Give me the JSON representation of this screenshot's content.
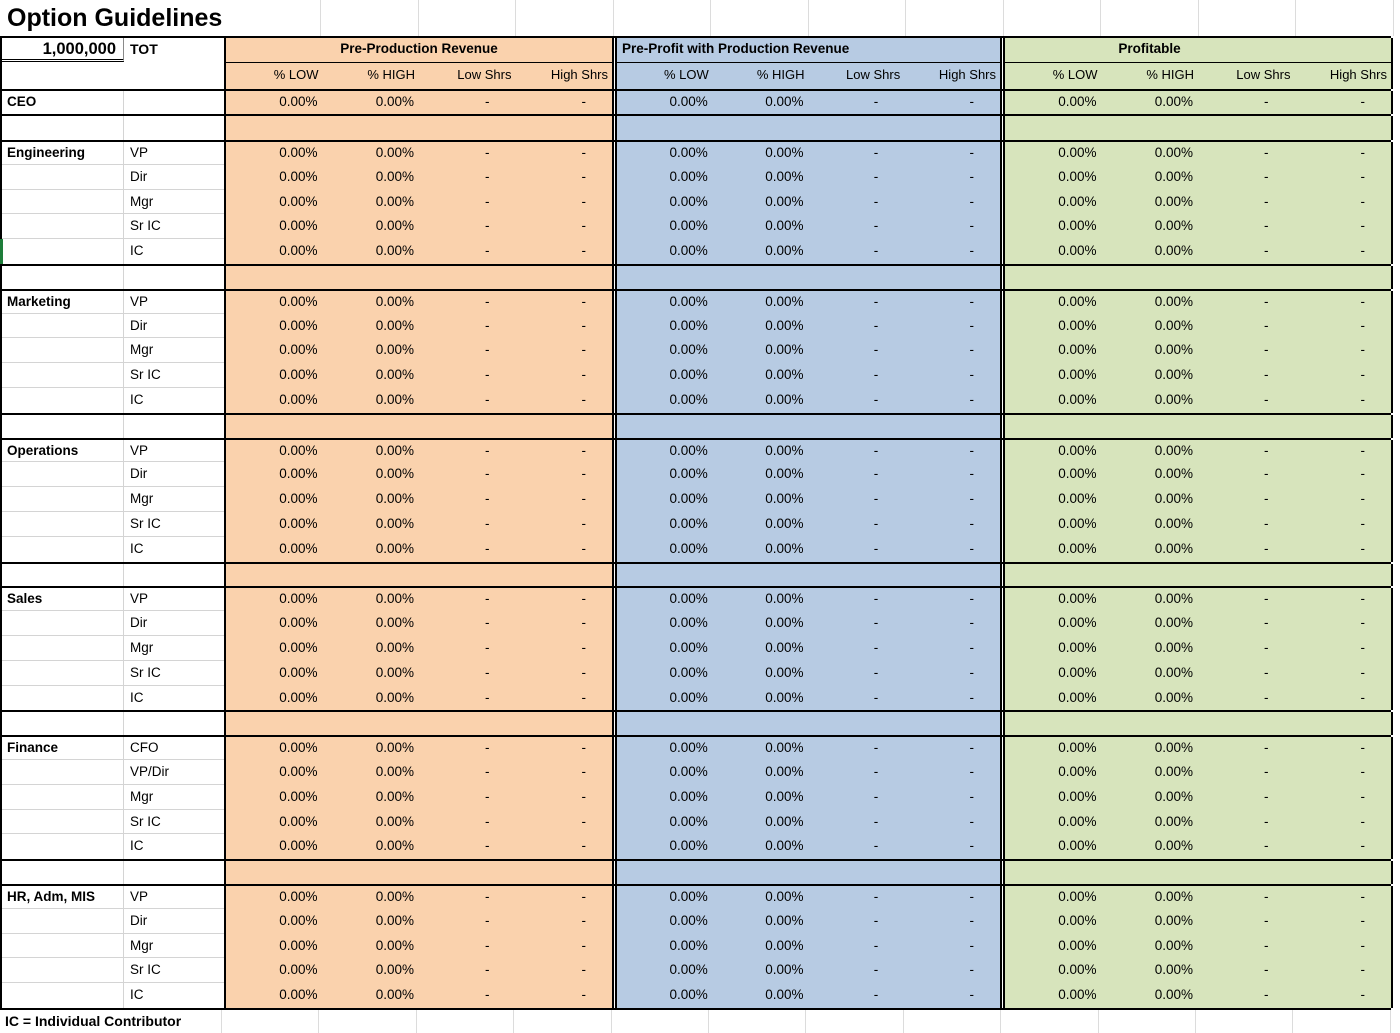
{
  "sheet": {
    "title": "Option Guidelines",
    "total": "1,000,000",
    "total_label": "TOT",
    "note": "IC = Individual Contributor"
  },
  "groups": [
    {
      "id": "pre_production",
      "label": "Pre-Production Revenue",
      "color": "#FAD2AD"
    },
    {
      "id": "pre_profit",
      "label": "Pre-Profit with Production Revenue",
      "color": "#B7CBE3"
    },
    {
      "id": "profitable",
      "label": "Profitable",
      "color": "#D7E4BC"
    }
  ],
  "columns": [
    "% LOW",
    "% HIGH",
    "Low Shrs",
    "High Shrs"
  ],
  "ceo_label": "CEO",
  "values": {
    "pct_low": "0.00%",
    "pct_high": "0.00%",
    "low_shrs": "-",
    "high_shrs": "-"
  },
  "sections": [
    {
      "name": "Engineering",
      "roles": [
        "VP",
        "Dir",
        "Mgr",
        "Sr IC",
        "IC"
      ]
    },
    {
      "name": "Marketing",
      "roles": [
        "VP",
        "Dir",
        "Mgr",
        "Sr IC",
        "IC"
      ]
    },
    {
      "name": "Operations",
      "roles": [
        "VP",
        "Dir",
        "Mgr",
        "Sr IC",
        "IC"
      ]
    },
    {
      "name": "Sales",
      "roles": [
        "VP",
        "Dir",
        "Mgr",
        "Sr IC",
        "IC"
      ]
    },
    {
      "name": "Finance",
      "roles": [
        "CFO",
        "VP/Dir",
        "Mgr",
        "Sr IC",
        "IC"
      ]
    },
    {
      "name": "HR, Adm, MIS",
      "roles": [
        "VP",
        "Dir",
        "Mgr",
        "Sr IC",
        "IC"
      ]
    }
  ]
}
